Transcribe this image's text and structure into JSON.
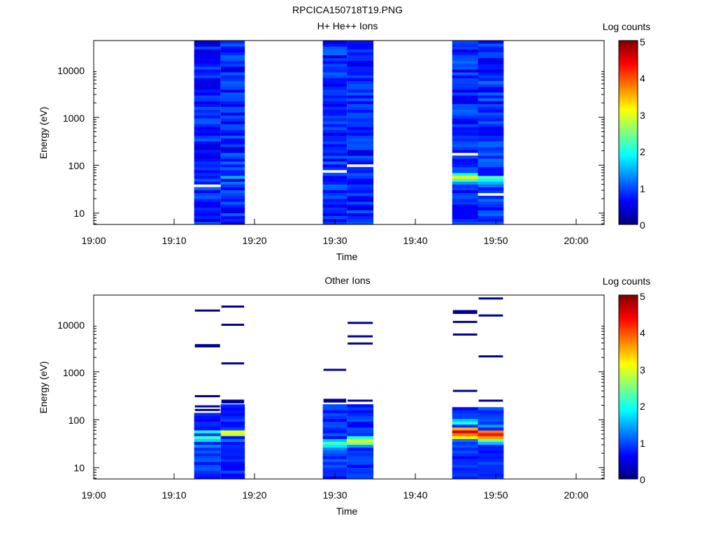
{
  "figure_title": "RPCICA150718T19.PNG",
  "colors": {
    "axis": "#000000",
    "background": "#ffffff",
    "colormap": [
      "#00007f",
      "#0000ff",
      "#007fff",
      "#00ffff",
      "#7fff7f",
      "#ffff00",
      "#ff7f00",
      "#ff0000",
      "#7f0000"
    ]
  },
  "chart_data": [
    {
      "type": "heatmap",
      "title": "H+ He++ Ions",
      "xlabel": "Time",
      "ylabel": "Energy (eV)",
      "x_ticks": [
        "19:00",
        "19:10",
        "19:20",
        "19:30",
        "19:40",
        "19:50",
        "20:00"
      ],
      "xlim_minutes": [
        0,
        63.5
      ],
      "y_scale": "log",
      "ylim": [
        5.8,
        40000
      ],
      "y_ticks": [
        "10",
        "100",
        "1000",
        "10000"
      ],
      "colorbar": {
        "label": "Log counts",
        "range": [
          0,
          5
        ],
        "ticks": [
          "0",
          "1",
          "2",
          "3",
          "4",
          "5"
        ]
      },
      "columns": [
        {
          "start_min": 12.5,
          "end_min": 15.8,
          "base_level": 0.75,
          "bright_bins": [],
          "gaps_eV": [
            40
          ]
        },
        {
          "start_min": 15.8,
          "end_min": 18.8,
          "base_level": 0.8,
          "bright_bins": [
            [
              55,
              1.5
            ],
            [
              45,
              1.2
            ]
          ],
          "gaps_eV": []
        },
        {
          "start_min": 28.5,
          "end_min": 31.5,
          "base_level": 0.8,
          "bright_bins": [],
          "gaps_eV": [
            78
          ]
        },
        {
          "start_min": 31.5,
          "end_min": 34.8,
          "base_level": 0.75,
          "bright_bins": [],
          "gaps_eV": [
            98
          ]
        },
        {
          "start_min": 44.6,
          "end_min": 47.8,
          "base_level": 0.8,
          "bright_bins": [
            [
              65,
              2.0
            ],
            [
              55,
              3.2
            ],
            [
              48,
              2.2
            ],
            [
              42,
              1.4
            ]
          ],
          "gaps_eV": [
            165
          ]
        },
        {
          "start_min": 47.8,
          "end_min": 51.0,
          "base_level": 0.85,
          "bright_bins": [
            [
              55,
              2.3
            ],
            [
              48,
              1.9
            ],
            [
              42,
              1.5
            ]
          ],
          "gaps_eV": [
            25
          ]
        }
      ]
    },
    {
      "type": "heatmap",
      "title": "Other Ions",
      "xlabel": "Time",
      "ylabel": "Energy (eV)",
      "x_ticks": [
        "19:00",
        "19:10",
        "19:20",
        "19:30",
        "19:40",
        "19:50",
        "20:00"
      ],
      "xlim_minutes": [
        0,
        63.5
      ],
      "y_scale": "log",
      "ylim": [
        5.8,
        40000
      ],
      "y_ticks": [
        "10",
        "100",
        "1000",
        "10000"
      ],
      "colorbar": {
        "label": "Log counts",
        "range": [
          0,
          5
        ],
        "ticks": [
          "0",
          "1",
          "2",
          "3",
          "4",
          "5"
        ]
      },
      "columns": [
        {
          "start_min": 12.5,
          "end_min": 15.8,
          "sparse_lines_eV": [
            19000,
            3600,
            3400,
            310,
            190,
            160
          ],
          "dense_from_eV": 140,
          "bright_bins": [
            [
              55,
              2.0
            ],
            [
              45,
              2.2
            ],
            [
              38,
              1.7
            ],
            [
              30,
              1.3
            ]
          ]
        },
        {
          "start_min": 15.8,
          "end_min": 18.8,
          "sparse_lines_eV": [
            23000,
            9600,
            1500,
            250,
            230
          ],
          "dense_from_eV": 200,
          "bright_bins": [
            [
              55,
              3.0
            ],
            [
              48,
              2.8
            ],
            [
              40,
              1.5
            ],
            [
              35,
              1.2
            ]
          ]
        },
        {
          "start_min": 28.5,
          "end_min": 31.5,
          "sparse_lines_eV": [
            1100,
            260,
            240
          ],
          "dense_from_eV": 210,
          "bright_bins": [
            [
              40,
              1.6
            ],
            [
              34,
              2.2
            ],
            [
              28,
              1.8
            ],
            [
              24,
              1.3
            ]
          ]
        },
        {
          "start_min": 31.5,
          "end_min": 34.8,
          "sparse_lines_eV": [
            10500,
            5500,
            3900,
            250
          ],
          "dense_from_eV": 200,
          "bright_bins": [
            [
              45,
              2.0
            ],
            [
              40,
              3.0
            ],
            [
              34,
              2.6
            ],
            [
              28,
              1.4
            ]
          ]
        },
        {
          "start_min": 44.6,
          "end_min": 47.8,
          "sparse_lines_eV": [
            18500,
            17000,
            11000,
            6000,
            400
          ],
          "dense_from_eV": 190,
          "bright_bins": [
            [
              100,
              1.6
            ],
            [
              80,
              2.0
            ],
            [
              65,
              3.5
            ],
            [
              55,
              4.6
            ],
            [
              48,
              3.8
            ],
            [
              42,
              3.2
            ],
            [
              36,
              1.2
            ]
          ]
        },
        {
          "start_min": 47.8,
          "end_min": 51.0,
          "sparse_lines_eV": [
            34000,
            15000,
            2100,
            250
          ],
          "dense_from_eV": 190,
          "bright_bins": [
            [
              70,
              1.4
            ],
            [
              58,
              3.8
            ],
            [
              50,
              4.3
            ],
            [
              44,
              3.6
            ],
            [
              38,
              2.4
            ],
            [
              33,
              1.6
            ]
          ]
        }
      ]
    }
  ]
}
